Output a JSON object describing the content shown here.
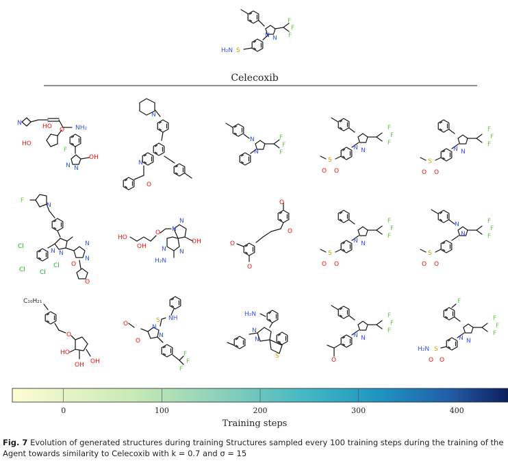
{
  "reference": {
    "name": "Celecoxib"
  },
  "atoms": {
    "N": "N",
    "O": "O",
    "F": "F",
    "Cl": "Cl",
    "S": "S",
    "NH2": "NH₂",
    "H2N": "H₂N",
    "OH": "OH",
    "HO": "HO",
    "NH": "NH",
    "C10H21": "C₁₀H₂₁"
  },
  "colorbar": {
    "title": "Training steps",
    "ticks": [
      "0",
      "100",
      "200",
      "300",
      "400"
    ],
    "tick_values": [
      0,
      100,
      200,
      300,
      400
    ],
    "range": [
      -52,
      452
    ],
    "colors": [
      "#fefcd2",
      "#7fcdbb",
      "#41b6c4",
      "#1d91c0",
      "#225ea8",
      "#081d58"
    ]
  },
  "caption": {
    "label": "Fig. 7",
    "text": "Evolution of generated structures during training Structures sampled every 100 training steps during the training of the Agent towards similarity to Celecoxib with k = 0.7 and σ = 15"
  }
}
